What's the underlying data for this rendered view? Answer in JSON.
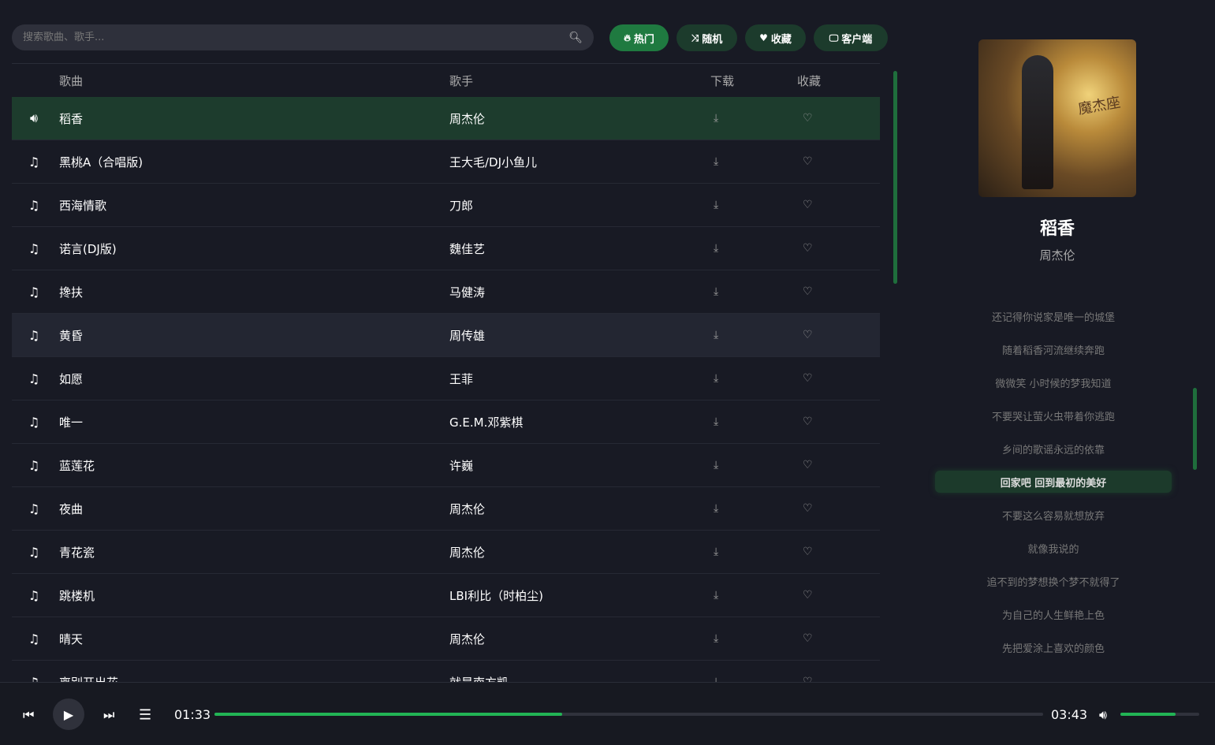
{
  "search": {
    "placeholder": "搜索歌曲、歌手..."
  },
  "toolbar": [
    {
      "icon": "fire-icon",
      "glyph": "🔥",
      "label": "热门",
      "active": true
    },
    {
      "icon": "shuffle-icon",
      "glyph": "⤨",
      "label": "随机"
    },
    {
      "icon": "heart-icon",
      "glyph": "♥",
      "label": "收藏"
    },
    {
      "icon": "monitor-icon",
      "glyph": "🖵",
      "label": "客户端"
    }
  ],
  "columns": {
    "song": "歌曲",
    "artist": "歌手",
    "download": "下载",
    "favorite": "收藏"
  },
  "songs": [
    {
      "name": "稻香",
      "artist": "周杰伦",
      "playing": true
    },
    {
      "name": "黑桃A（合唱版)",
      "artist": "王大毛/DJ小鱼儿"
    },
    {
      "name": "西海情歌",
      "artist": "刀郎"
    },
    {
      "name": "诺言(DJ版)",
      "artist": "魏佳艺"
    },
    {
      "name": "搀扶",
      "artist": "马健涛"
    },
    {
      "name": "黄昏",
      "artist": "周传雄"
    },
    {
      "name": "如愿",
      "artist": "王菲"
    },
    {
      "name": "唯一",
      "artist": "G.E.M.邓紫棋"
    },
    {
      "name": "蓝莲花",
      "artist": "许巍"
    },
    {
      "name": "夜曲",
      "artist": "周杰伦"
    },
    {
      "name": "青花瓷",
      "artist": "周杰伦"
    },
    {
      "name": "跳楼机",
      "artist": "LBI利比（时柏尘)"
    },
    {
      "name": "晴天",
      "artist": "周杰伦"
    },
    {
      "name": "离别开出花",
      "artist": "就是南方凯"
    }
  ],
  "now_playing": {
    "title": "稻香",
    "artist": "周杰伦",
    "cover_text": "魔杰座"
  },
  "lyrics": [
    "还记得你说家是唯一的城堡",
    "随着稻香河流继续奔跑",
    "微微笑 小时候的梦我知道",
    "不要哭让萤火虫带着你逃跑",
    "乡间的歌谣永远的依靠",
    "回家吧 回到最初的美好",
    "不要这么容易就想放弃",
    "就像我说的",
    "追不到的梦想换个梦不就得了",
    "为自己的人生鲜艳上色",
    "先把爱涂上喜欢的颜色"
  ],
  "current_lyric_index": 5,
  "player": {
    "current_time": "01:33",
    "duration": "03:43",
    "progress_percent": 42,
    "volume_percent": 70
  },
  "colors": {
    "accent": "#22b455",
    "playing_row": "#1d3c2d",
    "background": "#181a24"
  }
}
